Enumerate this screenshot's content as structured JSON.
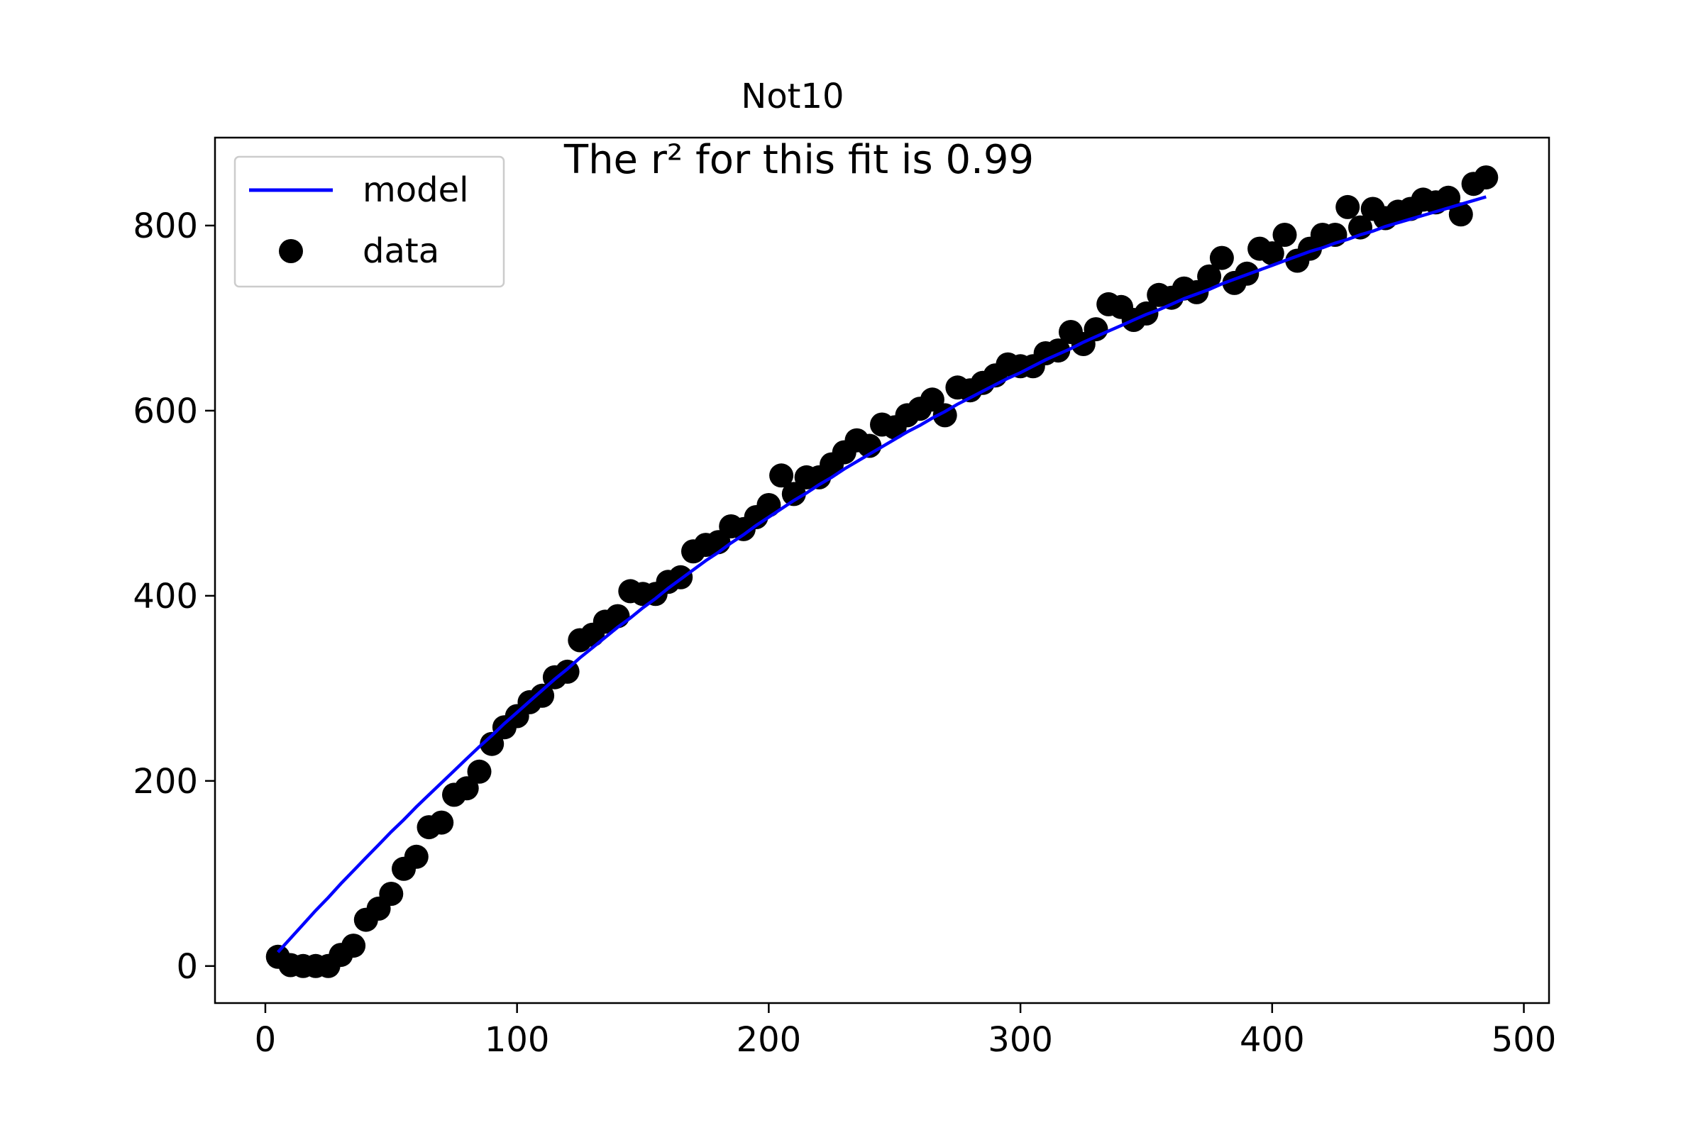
{
  "chart_data": {
    "type": "scatter",
    "title": "Not10",
    "annotation": "The r² for this fit is 0.99",
    "xlabel": "",
    "ylabel": "",
    "xlim": [
      -20,
      510
    ],
    "ylim": [
      -40,
      895
    ],
    "xticks": [
      0,
      100,
      200,
      300,
      400,
      500
    ],
    "yticks": [
      0,
      200,
      400,
      600,
      800
    ],
    "grid": false,
    "legend_position": "upper-left",
    "colors": {
      "model": "#0000ff",
      "data": "#000000"
    },
    "series": [
      {
        "name": "model",
        "kind": "line",
        "color": "#0000ff",
        "x": [
          5,
          10,
          15,
          20,
          25,
          30,
          35,
          40,
          45,
          50,
          55,
          60,
          65,
          70,
          75,
          80,
          85,
          90,
          95,
          100,
          105,
          110,
          115,
          120,
          125,
          130,
          135,
          140,
          145,
          150,
          155,
          160,
          165,
          170,
          175,
          180,
          185,
          190,
          195,
          200,
          205,
          210,
          215,
          220,
          225,
          230,
          235,
          240,
          245,
          250,
          255,
          260,
          265,
          270,
          275,
          280,
          285,
          290,
          295,
          300,
          305,
          310,
          315,
          320,
          325,
          330,
          335,
          340,
          345,
          350,
          355,
          360,
          365,
          370,
          375,
          380,
          385,
          390,
          395,
          400,
          405,
          410,
          415,
          420,
          425,
          430,
          435,
          440,
          445,
          450,
          455,
          460,
          465,
          470,
          475,
          480,
          485
        ],
        "y": [
          15,
          30,
          45,
          60,
          74,
          89,
          103,
          117,
          131,
          145,
          158,
          172,
          185,
          198,
          211,
          224,
          237,
          249,
          262,
          274,
          286,
          298,
          310,
          321,
          333,
          344,
          355,
          366,
          376,
          387,
          397,
          408,
          418,
          428,
          438,
          447,
          457,
          466,
          476,
          485,
          494,
          503,
          511,
          520,
          528,
          537,
          545,
          553,
          561,
          569,
          577,
          584,
          592,
          599,
          607,
          614,
          621,
          628,
          635,
          641,
          648,
          655,
          661,
          667,
          674,
          680,
          686,
          692,
          698,
          704,
          709,
          715,
          721,
          726,
          731,
          737,
          742,
          747,
          752,
          757,
          762,
          767,
          772,
          776,
          781,
          785,
          790,
          794,
          799,
          803,
          807,
          811,
          815,
          819,
          823,
          827,
          831
        ]
      },
      {
        "name": "data",
        "kind": "scatter",
        "color": "#000000",
        "x": [
          5,
          10,
          15,
          20,
          25,
          30,
          35,
          40,
          45,
          50,
          55,
          60,
          65,
          70,
          75,
          80,
          85,
          90,
          95,
          100,
          105,
          110,
          115,
          120,
          125,
          130,
          135,
          140,
          145,
          150,
          155,
          160,
          165,
          170,
          175,
          180,
          185,
          190,
          195,
          200,
          205,
          210,
          215,
          220,
          225,
          230,
          235,
          240,
          245,
          250,
          255,
          260,
          265,
          270,
          275,
          280,
          285,
          290,
          295,
          300,
          305,
          310,
          315,
          320,
          325,
          330,
          335,
          340,
          345,
          350,
          355,
          360,
          365,
          370,
          375,
          380,
          385,
          390,
          395,
          400,
          405,
          410,
          415,
          420,
          425,
          430,
          435,
          440,
          445,
          450,
          455,
          460,
          465,
          470,
          475,
          480,
          485
        ],
        "y": [
          10,
          1,
          0,
          0,
          0,
          12,
          22,
          50,
          62,
          78,
          105,
          118,
          150,
          155,
          185,
          192,
          210,
          240,
          258,
          270,
          285,
          292,
          312,
          318,
          352,
          358,
          372,
          378,
          405,
          402,
          402,
          415,
          420,
          448,
          455,
          458,
          475,
          472,
          485,
          498,
          530,
          510,
          528,
          528,
          542,
          555,
          568,
          562,
          585,
          582,
          595,
          602,
          612,
          595,
          625,
          622,
          630,
          638,
          650,
          648,
          648,
          662,
          665,
          685,
          672,
          688,
          715,
          712,
          698,
          705,
          725,
          722,
          732,
          728,
          745,
          765,
          738,
          748,
          775,
          770,
          790,
          762,
          775,
          790,
          790,
          820,
          798,
          818,
          808,
          815,
          818,
          828,
          825,
          830,
          812,
          845,
          852
        ]
      }
    ]
  }
}
